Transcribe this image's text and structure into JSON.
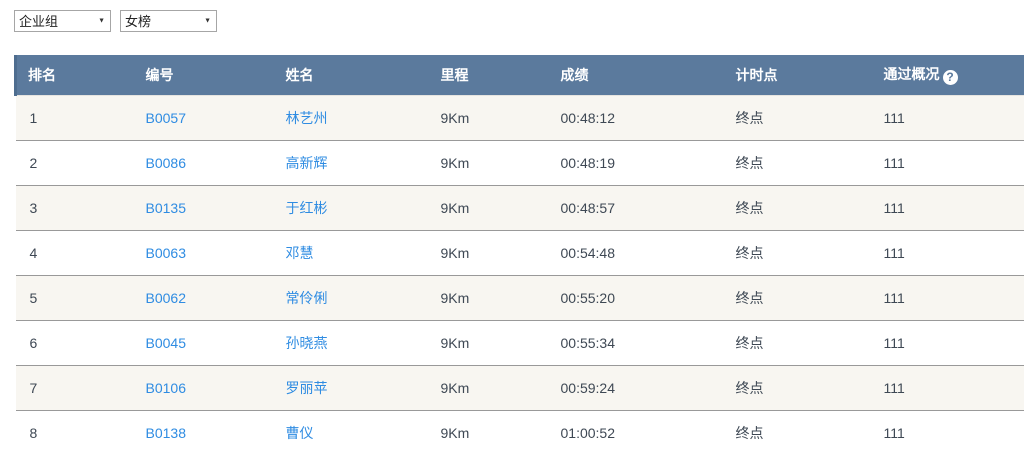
{
  "filters": {
    "group_select": {
      "value": "企业组"
    },
    "board_select": {
      "value": "女榜"
    }
  },
  "table": {
    "columns": [
      {
        "key": "rank",
        "label": "排名"
      },
      {
        "key": "bib",
        "label": "编号"
      },
      {
        "key": "name",
        "label": "姓名"
      },
      {
        "key": "distance",
        "label": "里程"
      },
      {
        "key": "result",
        "label": "成绩"
      },
      {
        "key": "checkpoint",
        "label": "计时点"
      },
      {
        "key": "pass_overview",
        "label": "通过概况"
      }
    ],
    "help_icon_glyph": "?",
    "rows": [
      {
        "rank": "1",
        "bib": "B0057",
        "name": "林艺州",
        "distance": "9Km",
        "result": "00:48:12",
        "checkpoint": "终点",
        "pass_overview": "111"
      },
      {
        "rank": "2",
        "bib": "B0086",
        "name": "高新辉",
        "distance": "9Km",
        "result": "00:48:19",
        "checkpoint": "终点",
        "pass_overview": "111"
      },
      {
        "rank": "3",
        "bib": "B0135",
        "name": "于红彬",
        "distance": "9Km",
        "result": "00:48:57",
        "checkpoint": "终点",
        "pass_overview": "111"
      },
      {
        "rank": "4",
        "bib": "B0063",
        "name": "邓慧",
        "distance": "9Km",
        "result": "00:54:48",
        "checkpoint": "终点",
        "pass_overview": "111"
      },
      {
        "rank": "5",
        "bib": "B0062",
        "name": "常伶俐",
        "distance": "9Km",
        "result": "00:55:20",
        "checkpoint": "终点",
        "pass_overview": "111"
      },
      {
        "rank": "6",
        "bib": "B0045",
        "name": "孙晓燕",
        "distance": "9Km",
        "result": "00:55:34",
        "checkpoint": "终点",
        "pass_overview": "111"
      },
      {
        "rank": "7",
        "bib": "B0106",
        "name": "罗丽苹",
        "distance": "9Km",
        "result": "00:59:24",
        "checkpoint": "终点",
        "pass_overview": "111"
      },
      {
        "rank": "8",
        "bib": "B0138",
        "name": "曹仪",
        "distance": "9Km",
        "result": "01:00:52",
        "checkpoint": "终点",
        "pass_overview": "111"
      }
    ]
  },
  "colors": {
    "header_bg": "#5b7a9d",
    "header_bg_dark": "#4e6d8f",
    "link": "#2f8ce2",
    "row_alt_bg": "#f8f6f1",
    "row_border": "#999999",
    "text": "#3e4854"
  }
}
